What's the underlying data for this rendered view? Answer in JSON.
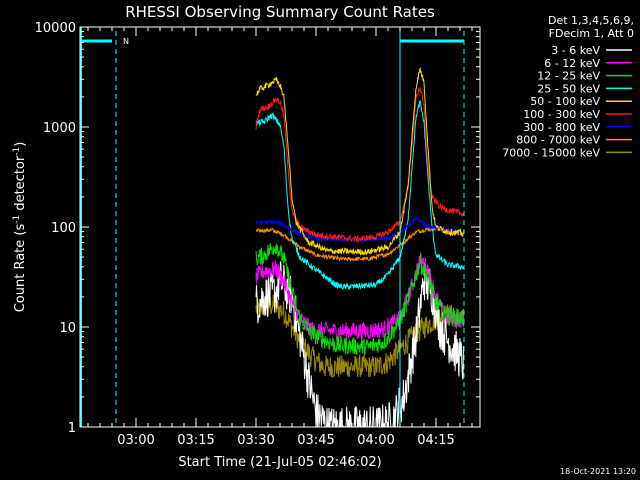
{
  "chart_data": {
    "type": "line",
    "title": "RHESSI Observing Summary Count Rates",
    "xlabel": "Start Time (21-Jul-05 02:46:02)",
    "ylabel": "Count Rate (s",
    "ylabel_sup1": "-1",
    "ylabel_mid": " detector",
    "ylabel_sup2": "-1",
    "ylabel_end": ")",
    "yscale": "log",
    "ylim": [
      1,
      10000
    ],
    "xlim_minutes": [
      166,
      266
    ],
    "x_ticks": [
      {
        "m": 180,
        "label": "03:00"
      },
      {
        "m": 195,
        "label": "03:15"
      },
      {
        "m": 210,
        "label": "03:30"
      },
      {
        "m": 225,
        "label": "03:45"
      },
      {
        "m": 240,
        "label": "04:00"
      },
      {
        "m": 255,
        "label": "04:15"
      }
    ],
    "y_ticks": [
      {
        "v": 1,
        "label": "1"
      },
      {
        "v": 10,
        "label": "10"
      },
      {
        "v": 100,
        "label": "100"
      },
      {
        "v": 1000,
        "label": "1000"
      },
      {
        "v": 10000,
        "label": "10000"
      }
    ],
    "legend_header": [
      "Det 1,3,4,5,6,9,",
      "FDecim 1, Att 0"
    ],
    "series": [
      {
        "name": "3 - 6 keV",
        "color": "#ffffff"
      },
      {
        "name": "6 - 12 keV",
        "color": "#ff00ff"
      },
      {
        "name": "12 - 25 keV",
        "color": "#00e000"
      },
      {
        "name": "25 - 50 keV",
        "color": "#00ffff"
      },
      {
        "name": "50 - 100 keV",
        "color": "#ffd700"
      },
      {
        "name": "100 - 300 keV",
        "color": "#ff1a1a"
      },
      {
        "name": "300 - 800 keV",
        "color": "#0000ff"
      },
      {
        "name": "800 - 7000 keV",
        "color": "#ff8c00"
      },
      {
        "name": "7000 - 15000 keV",
        "color": "#9a8a00"
      }
    ],
    "night_markers_minutes": [
      175,
      246,
      262
    ],
    "night_marker_color": "#00ffff",
    "saa_label": "N",
    "footer": "18-Oct-2021 13:20"
  }
}
